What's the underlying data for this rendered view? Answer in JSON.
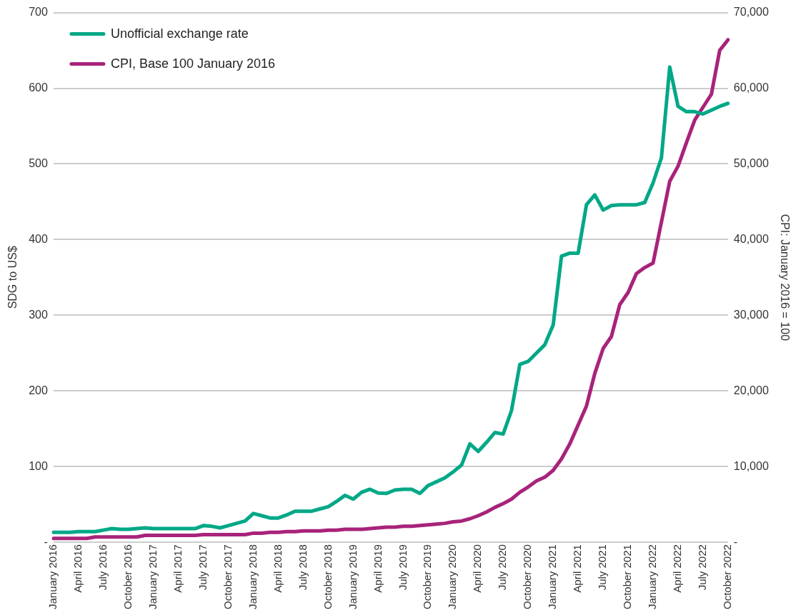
{
  "chart_data": {
    "type": "line",
    "ylabel": "SDG to US$",
    "y2label": "CPI: January 2016 = 100",
    "categories": [
      "January 2016",
      null,
      null,
      "April 2016",
      null,
      null,
      "July 2016",
      null,
      null,
      "October 2016",
      null,
      null,
      "January 2017",
      null,
      null,
      "April 2017",
      null,
      null,
      "July 2017",
      null,
      null,
      "October 2017",
      null,
      null,
      "January 2018",
      null,
      null,
      "April 2018",
      null,
      null,
      "July 2018",
      null,
      null,
      "October 2018",
      null,
      null,
      "January 2019",
      null,
      null,
      "April 2019",
      null,
      null,
      "July 2019",
      null,
      null,
      "October 2019",
      null,
      null,
      "January 2020",
      null,
      null,
      "April 2020",
      null,
      null,
      "July 2020",
      null,
      null,
      "October 2020",
      null,
      null,
      "January 2021",
      null,
      null,
      "April 2021",
      null,
      null,
      "July 2021",
      null,
      null,
      "October 2021",
      null,
      null,
      "January 2022",
      null,
      null,
      "April 2022",
      null,
      null,
      "July 2022",
      null,
      null,
      "October 2022"
    ],
    "series": [
      {
        "name": "Unofficial exchange rate",
        "color": "#00a887",
        "values": [
          13,
          13,
          13,
          14,
          14,
          14,
          16,
          18,
          17,
          17,
          18,
          19,
          18,
          18,
          18,
          18,
          18,
          18,
          22,
          21,
          19,
          22,
          25,
          28,
          38,
          35,
          32,
          32,
          36,
          41,
          41,
          41,
          44,
          47,
          54,
          62,
          57,
          66,
          70,
          65,
          64.5,
          69,
          70,
          70,
          64.5,
          75,
          80,
          85,
          93,
          102,
          130,
          120,
          132,
          145,
          143,
          174,
          235,
          239,
          250,
          261,
          287,
          378,
          382,
          382,
          446,
          459,
          439,
          445,
          446,
          446,
          446,
          449,
          475,
          508,
          628,
          576,
          569,
          569,
          566,
          571,
          576,
          580
        ]
      },
      {
        "name": "CPI, Base 100 January 2016",
        "color": "#a8237a",
        "axis": "y2",
        "values": [
          500,
          500,
          500,
          500,
          500,
          700,
          700,
          700,
          700,
          700,
          700,
          900,
          900,
          900,
          900,
          900,
          900,
          900,
          1000,
          1000,
          1000,
          1000,
          1000,
          1000,
          1200,
          1200,
          1300,
          1300,
          1400,
          1400,
          1500,
          1500,
          1500,
          1600,
          1600,
          1700,
          1700,
          1700,
          1800,
          1900,
          2000,
          2000,
          2100,
          2100,
          2200,
          2300,
          2400,
          2500,
          2700,
          2800,
          3100,
          3500,
          4000,
          4600,
          5100,
          5700,
          6600,
          7300,
          8100,
          8600,
          9500,
          11000,
          13000,
          15500,
          18000,
          22300,
          25600,
          27200,
          31400,
          33000,
          35500,
          36300,
          36900,
          42300,
          47700,
          49700,
          52800,
          55800,
          57500,
          59200,
          65000,
          66400
        ]
      }
    ],
    "ylim": [
      0,
      700
    ],
    "yticks": [
      {
        "value": 0,
        "label": "-"
      },
      100,
      200,
      300,
      400,
      500,
      600,
      700
    ],
    "y2lim": [
      0,
      70000
    ],
    "y2ticks": [
      {
        "value": 0,
        "label": "-"
      },
      {
        "value": 10000,
        "label": "10,000"
      },
      {
        "value": 20000,
        "label": "20,000"
      },
      {
        "value": 30000,
        "label": "30,000"
      },
      {
        "value": 40000,
        "label": "40,000"
      },
      {
        "value": 50000,
        "label": "50,000"
      },
      {
        "value": 60000,
        "label": "60,000"
      },
      {
        "value": 70000,
        "label": "70,000"
      }
    ],
    "grid": "y",
    "legend": "top left",
    "marker": "none",
    "line_style": "solid"
  }
}
